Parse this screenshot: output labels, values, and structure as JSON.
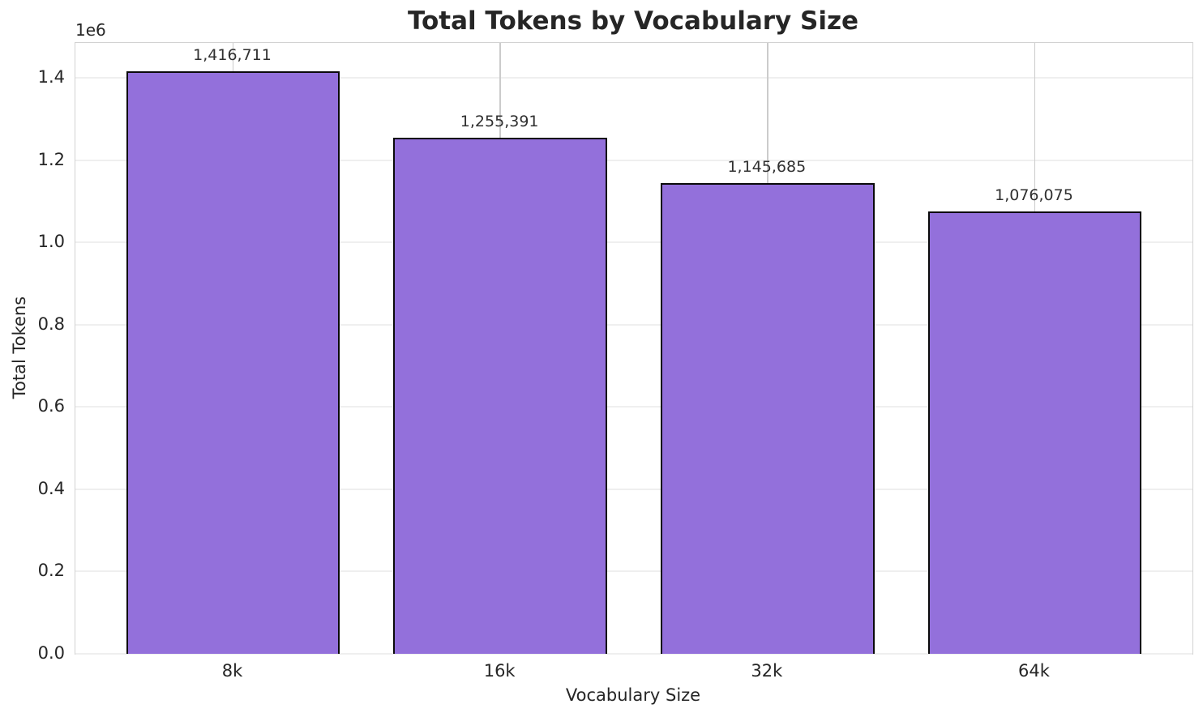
{
  "figure": {
    "title": "Total Tokens by Vocabulary Size",
    "offset_text": "1e6",
    "xlabel": "Vocabulary Size",
    "ylabel": "Total Tokens"
  },
  "chart_data": {
    "type": "bar",
    "title": "Total Tokens by Vocabulary Size",
    "xlabel": "Vocabulary Size",
    "ylabel": "Total Tokens",
    "categories": [
      "8k",
      "16k",
      "32k",
      "64k"
    ],
    "values": [
      1416711,
      1255391,
      1145685,
      1076075
    ],
    "value_labels": [
      "1,416,711",
      "1,255,391",
      "1,145,685",
      "1,076,075"
    ],
    "ytick_values": [
      0,
      200000,
      400000,
      600000,
      800000,
      1000000,
      1200000,
      1400000
    ],
    "ytick_labels": [
      "0.0",
      "0.2",
      "0.4",
      "0.6",
      "0.8",
      "1.0",
      "1.2",
      "1.4"
    ],
    "y_offset_label": "1e6",
    "ylim": [
      0,
      1485700
    ],
    "xlim": [
      -0.59,
      3.59
    ],
    "bar_width": 0.8,
    "grid": true,
    "legend": null,
    "bar_color": "#9370DB",
    "bar_edge_color": "#0a0a0a",
    "grid_color_horizontal": "#efefef",
    "grid_color_vertical": "#cbcbcb",
    "spine_color": "#d2d2d2",
    "text_color": "#262626"
  }
}
